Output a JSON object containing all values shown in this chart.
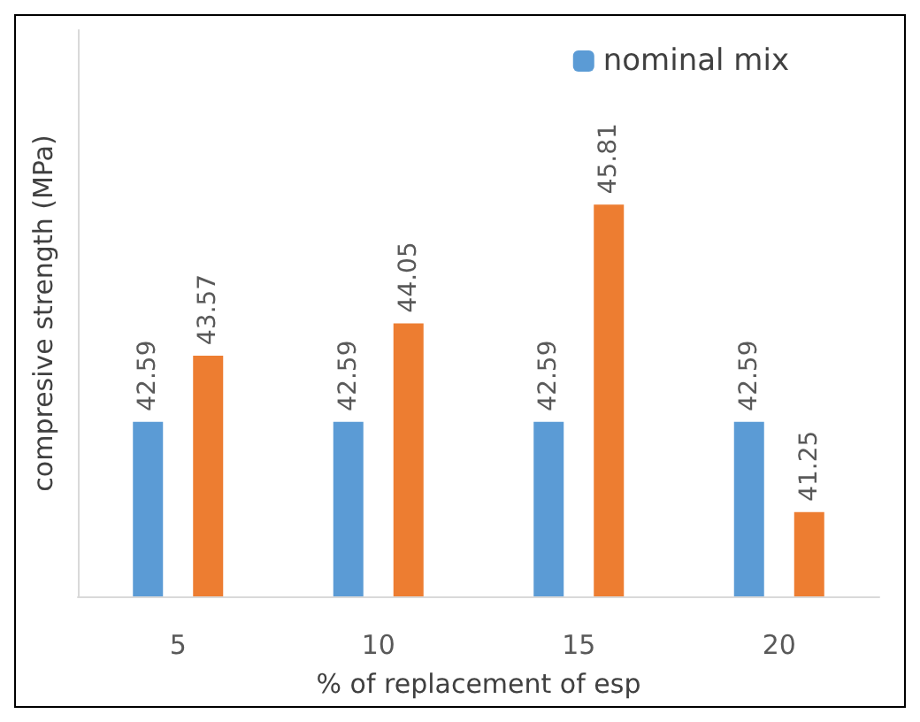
{
  "chart_data": {
    "type": "bar",
    "categories": [
      "5",
      "10",
      "15",
      "20"
    ],
    "series": [
      {
        "name": "nominal mix",
        "color": "#5b9bd5",
        "values": [
          42.59,
          42.59,
          42.59,
          42.59
        ]
      },
      {
        "color": "#ed7d31",
        "values": [
          43.57,
          44.05,
          45.81,
          41.25
        ]
      }
    ],
    "xlabel": "% of replacement of esp",
    "ylabel": "compresive strength (MPa)",
    "ylim": [
      40,
      48.4
    ],
    "tick_labels": "x",
    "data_labels": true,
    "grid": false,
    "legend": "top right"
  }
}
